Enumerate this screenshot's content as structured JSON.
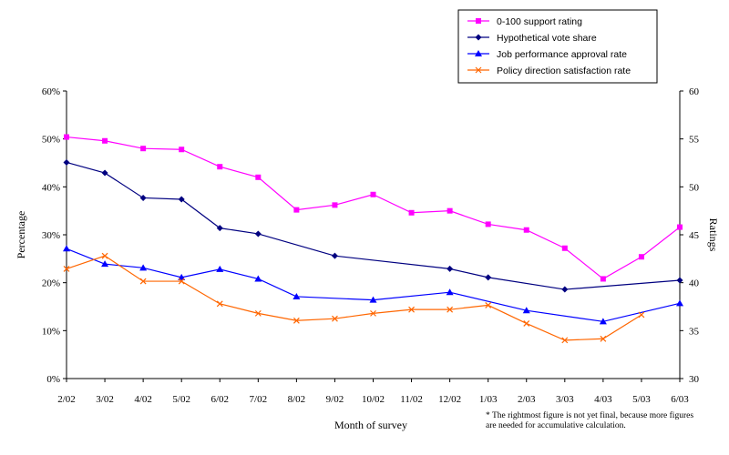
{
  "chart_data": {
    "type": "line",
    "xlabel": "Month of survey",
    "ylabel": "Percentage",
    "y2label": "Ratings",
    "categories": [
      "2/02",
      "3/02",
      "4/02",
      "5/02",
      "6/02",
      "7/02",
      "8/02",
      "9/02",
      "10/02",
      "11/02",
      "12/02",
      "1/03",
      "2/03",
      "3/03",
      "4/03",
      "5/03",
      "6/03"
    ],
    "y_ticks": [
      "0%",
      "10%",
      "20%",
      "30%",
      "40%",
      "50%",
      "60%"
    ],
    "ylim": [
      0,
      60
    ],
    "y2_ticks": [
      "30",
      "35",
      "40",
      "45",
      "50",
      "55",
      "60"
    ],
    "y2lim": [
      30,
      60
    ],
    "grid": false,
    "legend_position": "top-right",
    "series": [
      {
        "name": "0-100 support rating",
        "axis": "right",
        "color": "#ff00ff",
        "marker": "square",
        "values": [
          55.2,
          54.8,
          54.0,
          53.9,
          52.1,
          51.0,
          47.6,
          48.1,
          49.2,
          47.3,
          47.5,
          46.1,
          45.5,
          43.6,
          40.4,
          42.7,
          45.8
        ]
      },
      {
        "name": "Hypothetical vote share",
        "axis": "left",
        "color": "#000080",
        "marker": "diamond",
        "values": [
          45.1,
          42.9,
          37.7,
          37.4,
          31.4,
          30.2,
          null,
          25.6,
          null,
          null,
          22.9,
          21.1,
          null,
          18.6,
          null,
          null,
          20.5
        ]
      },
      {
        "name": "Job performance approval rate",
        "axis": "left",
        "color": "#0000ff",
        "marker": "triangle",
        "values": [
          27.1,
          23.9,
          23.1,
          21.1,
          22.8,
          20.8,
          17.1,
          null,
          16.4,
          null,
          18.0,
          null,
          14.2,
          null,
          11.9,
          null,
          15.7
        ]
      },
      {
        "name": "Policy direction satisfaction rate",
        "axis": "left",
        "color": "#ff6600",
        "marker": "x",
        "values": [
          22.9,
          25.6,
          20.3,
          20.3,
          15.6,
          13.6,
          12.1,
          12.5,
          13.6,
          14.4,
          14.4,
          15.3,
          11.5,
          8.0,
          8.3,
          13.3,
          null
        ]
      }
    ]
  },
  "footnote": {
    "line1": "* The rightmost figure is not yet final, because more figures",
    "line2": "are needed for accumulative calculation."
  }
}
